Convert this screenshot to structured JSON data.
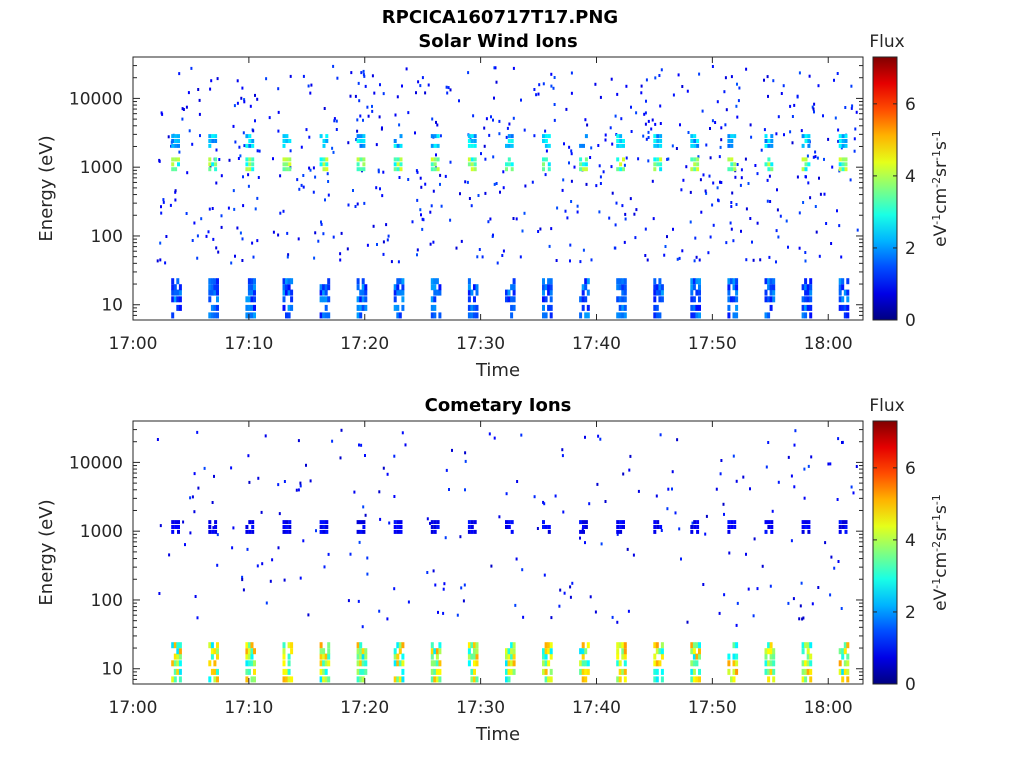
{
  "figure": {
    "title": "RPCICA160717T17.PNG"
  },
  "chart_data": [
    {
      "type": "heatmap",
      "title": "Solar Wind Ions",
      "xlabel": "Time",
      "ylabel": "Energy (eV)",
      "y_scale": "log",
      "ylim": [
        6,
        40000
      ],
      "xlim": [
        "17:00",
        "18:03"
      ],
      "x_ticks": [
        "17:00",
        "17:10",
        "17:20",
        "17:30",
        "17:40",
        "17:50",
        "18:00"
      ],
      "y_ticks": [
        "10",
        "100",
        "1000",
        "10000"
      ],
      "colorbar": {
        "label": "Flux",
        "unit": "eV-1cm-2sr-1s-1",
        "range": [
          0,
          7.3
        ],
        "ticks": [
          "0",
          "2",
          "4",
          "6"
        ]
      },
      "colormap": "jet",
      "sweep_start_minutes": [
        3.3,
        6.5,
        9.7,
        12.9,
        16.1,
        19.3,
        22.5,
        25.7,
        28.9,
        32.1,
        35.3,
        38.5,
        41.7,
        44.9,
        48.1,
        51.3,
        54.5,
        57.7,
        60.9
      ],
      "features": [
        {
          "energy_eV": 1100,
          "level": 3.6
        },
        {
          "energy_eV": 2400,
          "level": 2.4
        },
        {
          "energy_eV": 12,
          "level": 1.8
        }
      ],
      "background_level": 0.6
    },
    {
      "type": "heatmap",
      "title": "Cometary Ions",
      "xlabel": "Time",
      "ylabel": "Energy (eV)",
      "y_scale": "log",
      "ylim": [
        6,
        40000
      ],
      "xlim": [
        "17:00",
        "18:03"
      ],
      "x_ticks": [
        "17:00",
        "17:10",
        "17:20",
        "17:30",
        "17:40",
        "17:50",
        "18:00"
      ],
      "y_ticks": [
        "10",
        "100",
        "1000",
        "10000"
      ],
      "colorbar": {
        "label": "Flux",
        "unit": "eV-1cm-2sr-1s-1",
        "range": [
          0,
          7.3
        ],
        "ticks": [
          "0",
          "2",
          "4",
          "6"
        ]
      },
      "colormap": "jet",
      "sweep_start_minutes": [
        3.3,
        6.5,
        9.7,
        12.9,
        16.1,
        19.3,
        22.5,
        25.7,
        28.9,
        32.1,
        35.3,
        38.5,
        41.7,
        44.9,
        48.1,
        51.3,
        54.5,
        57.7,
        60.9
      ],
      "features": [
        {
          "energy_eV": 1150,
          "level": 0.9
        },
        {
          "energy_eV": 12,
          "level": 4.6
        }
      ],
      "background_level": 0.5
    }
  ]
}
